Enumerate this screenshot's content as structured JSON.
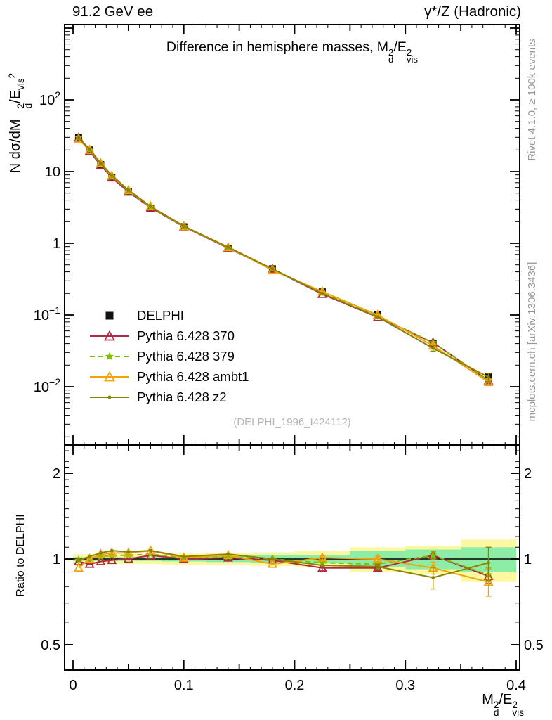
{
  "header": {
    "left_label": "91.2 GeV ee",
    "right_label": "γ*/Z (Hadronic)"
  },
  "side_captions": {
    "top": "Rivet 4.1.0, ≥ 100k events",
    "bottom": "mcplots.cern.ch [arXiv:1306.3436]"
  },
  "watermark": "(DELPHI_1996_I424112)",
  "panel_title": {
    "prefix": "Difference in hemisphere masses, ",
    "base": "M",
    "sup": "2",
    "sub": "d",
    "mid": "/E",
    "sup2": "2",
    "sub2": "vis"
  },
  "axis_labels": {
    "y_main": {
      "prefix": "N  dσ/dM",
      "sup": "2",
      "sub": "d",
      "mid": "/E",
      "sub2": "vis",
      "sup2": "2"
    },
    "y_ratio": "Ratio to DELPHI",
    "x": {
      "base": "M",
      "sup": "2",
      "sub": "d",
      "mid": "/E",
      "sup2": "2",
      "sub2": "vis"
    }
  },
  "legend": {
    "items": [
      {
        "label": "DELPHI"
      },
      {
        "label": "Pythia 6.428 370"
      },
      {
        "label": "Pythia 6.428 379"
      },
      {
        "label": "Pythia 6.428 ambt1"
      },
      {
        "label": "Pythia 6.428 z2"
      }
    ]
  },
  "chart_data": {
    "type": "line",
    "title": "Difference in hemisphere masses, M_d^2/E_vis^2",
    "xlabel": "M_d^2/E_vis^2",
    "ylabel": "N dσ/dM_d^2/E_vis^2",
    "yscale": "log",
    "xlim": [
      -0.008,
      0.404
    ],
    "ylim_main": [
      0.0015,
      1100
    ],
    "ratio_ylim": [
      0.4,
      2.5
    ],
    "grid": false,
    "legend_position": "inside-left-middle",
    "bin_edges": [
      0,
      0.01,
      0.02,
      0.03,
      0.04,
      0.06,
      0.08,
      0.12,
      0.16,
      0.2,
      0.25,
      0.3,
      0.35,
      0.4
    ],
    "x": [
      0.005,
      0.015,
      0.025,
      0.035,
      0.05,
      0.07,
      0.1,
      0.14,
      0.18,
      0.225,
      0.275,
      0.325,
      0.375
    ],
    "series": [
      {
        "name": "DELPHI",
        "role": "data",
        "marker": "square",
        "color": "#111111",
        "values": [
          30,
          20,
          12.5,
          8.3,
          5.2,
          3.05,
          1.7,
          0.85,
          0.44,
          0.21,
          0.1,
          0.04,
          0.014
        ]
      },
      {
        "name": "Pythia 6.428 370",
        "role": "mc",
        "marker": "triangle",
        "color": "#b12a45",
        "dash": null,
        "ratio": [
          0.98,
          0.96,
          0.98,
          0.99,
          1.0,
          1.03,
          1.0,
          1.01,
          0.99,
          0.93,
          0.93,
          1.03,
          0.87
        ],
        "ratio_err": [
          0,
          0,
          0,
          0,
          0,
          0,
          0,
          0,
          0,
          0.015,
          0.02,
          0.035,
          0.05
        ]
      },
      {
        "name": "Pythia 6.428 379",
        "role": "mc",
        "marker": "star",
        "color": "#7fbf00",
        "dash": "7,5",
        "ratio": [
          0.99,
          1.0,
          1.02,
          1.03,
          1.03,
          1.04,
          1.01,
          1.02,
          1.0,
          0.97,
          0.96,
          1.03,
          0.88
        ],
        "ratio_err": [
          0,
          0,
          0,
          0,
          0,
          0,
          0,
          0,
          0,
          0,
          0,
          0.03,
          0.05
        ]
      },
      {
        "name": "Pythia 6.428 ambt1",
        "role": "mc",
        "marker": "triangle",
        "color": "#f0a30a",
        "dash": null,
        "ratio": [
          0.93,
          1.0,
          1.04,
          1.05,
          1.05,
          1.07,
          1.01,
          1.03,
          0.96,
          1.01,
          1.0,
          0.93,
          0.83
        ],
        "ratio_err": [
          0,
          0,
          0,
          0,
          0,
          0,
          0,
          0,
          0,
          0.015,
          0.02,
          0.045,
          0.09
        ]
      },
      {
        "name": "Pythia 6.428 z2",
        "role": "mc",
        "marker": "dot",
        "color": "#8b8200",
        "dash": null,
        "ratio": [
          0.99,
          1.02,
          1.05,
          1.07,
          1.06,
          1.07,
          1.02,
          1.04,
          1.0,
          0.95,
          0.94,
          0.86,
          0.97
        ],
        "ratio_err": [
          0,
          0,
          0,
          0,
          0,
          0,
          0,
          0,
          0,
          0,
          0.02,
          0.075,
          0.13
        ]
      }
    ],
    "bands": {
      "yellow": {
        "color": "#fcf8a2",
        "halfwidths": [
          0.04,
          0.04,
          0.04,
          0.04,
          0.04,
          0.04,
          0.045,
          0.05,
          0.055,
          0.065,
          0.1,
          0.115,
          0.17
        ]
      },
      "green": {
        "color": "#8deda6",
        "halfwidths": [
          0.015,
          0.015,
          0.015,
          0.015,
          0.015,
          0.015,
          0.02,
          0.025,
          0.03,
          0.035,
          0.065,
          0.08,
          0.1
        ]
      }
    },
    "ratio_reference": 1.0,
    "y_ticks_main": [
      {
        "v": 100,
        "label": "10^2"
      },
      {
        "v": 10,
        "label": "10"
      },
      {
        "v": 1,
        "label": "1"
      },
      {
        "v": 0.1,
        "label": "10^−1"
      },
      {
        "v": 0.01,
        "label": "10^−2"
      }
    ],
    "y_ticks_ratio": [
      {
        "v": 2,
        "label": "2"
      },
      {
        "v": 1,
        "label": "1"
      },
      {
        "v": 0.5,
        "label": "0.5"
      }
    ],
    "x_ticks": [
      {
        "v": 0,
        "label": "0"
      },
      {
        "v": 0.1,
        "label": "0.1"
      },
      {
        "v": 0.2,
        "label": "0.2"
      },
      {
        "v": 0.3,
        "label": "0.3"
      },
      {
        "v": 0.4,
        "label": "0.4"
      }
    ]
  }
}
